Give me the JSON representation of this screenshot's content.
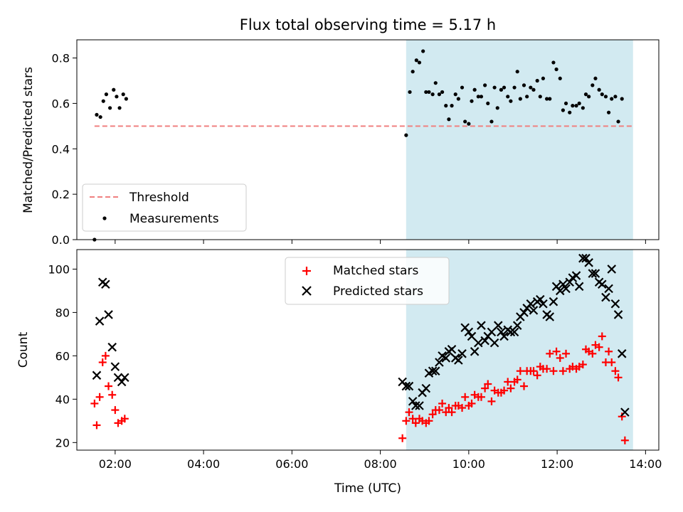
{
  "chart_data": [
    {
      "type": "scatter",
      "title": "Flux total observing time = 5.17 h",
      "ylabel": "Matched/Predicted stars",
      "xlabel": "",
      "xlim": [
        "01:08",
        "14:18"
      ],
      "ylim": [
        0,
        0.88
      ],
      "x_ticks": [
        "02:00",
        "04:00",
        "06:00",
        "08:00",
        "10:00",
        "12:00",
        "14:00"
      ],
      "x_tick_labels_shown": false,
      "y_ticks": [
        0.0,
        0.2,
        0.4,
        0.6,
        0.8
      ],
      "y_tick_labels": [
        "0.0",
        "0.2",
        "0.4",
        "0.6",
        "0.8"
      ],
      "shaded_span": {
        "start": "08:35",
        "end": "13:43",
        "color": "#add8e6"
      },
      "legend_position": "lower-left",
      "series": [
        {
          "name": "Threshold",
          "style": "dashed-line",
          "color": "#f08080",
          "points": [
            [
              "01:32",
              0.5
            ],
            [
              "13:43",
              0.5
            ]
          ]
        },
        {
          "name": "Measurements",
          "style": "dot",
          "color": "#000000",
          "points": [
            [
              "01:32",
              0.0
            ],
            [
              "01:35",
              0.55
            ],
            [
              "01:40",
              0.54
            ],
            [
              "01:44",
              0.61
            ],
            [
              "01:48",
              0.64
            ],
            [
              "01:53",
              0.58
            ],
            [
              "01:58",
              0.66
            ],
            [
              "02:02",
              0.63
            ],
            [
              "02:06",
              0.58
            ],
            [
              "02:11",
              0.64
            ],
            [
              "02:15",
              0.62
            ],
            [
              "08:35",
              0.46
            ],
            [
              "08:40",
              0.65
            ],
            [
              "08:44",
              0.74
            ],
            [
              "08:49",
              0.79
            ],
            [
              "08:53",
              0.78
            ],
            [
              "08:58",
              0.83
            ],
            [
              "09:02",
              0.65
            ],
            [
              "09:06",
              0.65
            ],
            [
              "09:11",
              0.64
            ],
            [
              "09:15",
              0.69
            ],
            [
              "09:20",
              0.64
            ],
            [
              "09:24",
              0.65
            ],
            [
              "09:29",
              0.59
            ],
            [
              "09:33",
              0.53
            ],
            [
              "09:37",
              0.59
            ],
            [
              "09:42",
              0.64
            ],
            [
              "09:46",
              0.62
            ],
            [
              "09:51",
              0.67
            ],
            [
              "09:55",
              0.52
            ],
            [
              "10:00",
              0.51
            ],
            [
              "10:04",
              0.61
            ],
            [
              "10:08",
              0.66
            ],
            [
              "10:13",
              0.63
            ],
            [
              "10:17",
              0.63
            ],
            [
              "10:22",
              0.68
            ],
            [
              "10:26",
              0.6
            ],
            [
              "10:31",
              0.52
            ],
            [
              "10:35",
              0.67
            ],
            [
              "10:39",
              0.58
            ],
            [
              "10:44",
              0.66
            ],
            [
              "10:48",
              0.67
            ],
            [
              "10:53",
              0.63
            ],
            [
              "10:57",
              0.61
            ],
            [
              "11:02",
              0.67
            ],
            [
              "11:06",
              0.74
            ],
            [
              "11:10",
              0.62
            ],
            [
              "11:15",
              0.68
            ],
            [
              "11:19",
              0.63
            ],
            [
              "11:24",
              0.67
            ],
            [
              "11:28",
              0.66
            ],
            [
              "11:33",
              0.7
            ],
            [
              "11:37",
              0.63
            ],
            [
              "11:41",
              0.71
            ],
            [
              "11:46",
              0.62
            ],
            [
              "11:50",
              0.62
            ],
            [
              "11:55",
              0.78
            ],
            [
              "11:59",
              0.75
            ],
            [
              "12:04",
              0.71
            ],
            [
              "12:08",
              0.57
            ],
            [
              "12:12",
              0.6
            ],
            [
              "12:17",
              0.56
            ],
            [
              "12:21",
              0.59
            ],
            [
              "12:26",
              0.59
            ],
            [
              "12:30",
              0.6
            ],
            [
              "12:35",
              0.58
            ],
            [
              "12:39",
              0.64
            ],
            [
              "12:43",
              0.63
            ],
            [
              "12:48",
              0.68
            ],
            [
              "12:52",
              0.71
            ],
            [
              "12:57",
              0.66
            ],
            [
              "13:01",
              0.64
            ],
            [
              "13:06",
              0.63
            ],
            [
              "13:10",
              0.56
            ],
            [
              "13:14",
              0.62
            ],
            [
              "13:19",
              0.63
            ],
            [
              "13:23",
              0.52
            ],
            [
              "13:28",
              0.62
            ]
          ]
        }
      ]
    },
    {
      "type": "scatter",
      "title": "",
      "xlabel": "Time (UTC)",
      "ylabel": "Count",
      "xlim": [
        "01:08",
        "14:18"
      ],
      "ylim": [
        16.5,
        109
      ],
      "x_ticks": [
        "02:00",
        "04:00",
        "06:00",
        "08:00",
        "10:00",
        "12:00",
        "14:00"
      ],
      "x_tick_labels": [
        "02:00",
        "04:00",
        "06:00",
        "08:00",
        "10:00",
        "12:00",
        "14:00"
      ],
      "y_ticks": [
        20,
        40,
        60,
        80,
        100
      ],
      "y_tick_labels": [
        "20",
        "40",
        "60",
        "80",
        "100"
      ],
      "shaded_span": {
        "start": "08:35",
        "end": "13:43",
        "color": "#add8e6"
      },
      "legend_position": "upper-center",
      "series": [
        {
          "name": "Matched stars",
          "marker": "plus",
          "color": "#ff0000",
          "points": [
            [
              "01:32",
              38
            ],
            [
              "01:35",
              28
            ],
            [
              "01:39",
              41
            ],
            [
              "01:43",
              57
            ],
            [
              "01:47",
              60
            ],
            [
              "01:51",
              46
            ],
            [
              "01:56",
              42
            ],
            [
              "02:00",
              35
            ],
            [
              "02:04",
              29
            ],
            [
              "02:09",
              30
            ],
            [
              "02:13",
              31
            ],
            [
              "08:30",
              22
            ],
            [
              "08:35",
              30
            ],
            [
              "08:39",
              34
            ],
            [
              "08:44",
              31
            ],
            [
              "08:48",
              29
            ],
            [
              "08:53",
              31
            ],
            [
              "08:57",
              30
            ],
            [
              "09:02",
              29
            ],
            [
              "09:06",
              30
            ],
            [
              "09:11",
              33
            ],
            [
              "09:15",
              35
            ],
            [
              "09:20",
              35
            ],
            [
              "09:24",
              38
            ],
            [
              "09:29",
              34
            ],
            [
              "09:33",
              36
            ],
            [
              "09:37",
              34
            ],
            [
              "09:42",
              37
            ],
            [
              "09:46",
              37
            ],
            [
              "09:51",
              36
            ],
            [
              "09:55",
              41
            ],
            [
              "10:00",
              37
            ],
            [
              "10:04",
              38
            ],
            [
              "10:08",
              42
            ],
            [
              "10:13",
              41
            ],
            [
              "10:17",
              41
            ],
            [
              "10:22",
              45
            ],
            [
              "10:26",
              47
            ],
            [
              "10:31",
              39
            ],
            [
              "10:35",
              44
            ],
            [
              "10:40",
              43
            ],
            [
              "10:44",
              43
            ],
            [
              "10:48",
              44
            ],
            [
              "10:53",
              48
            ],
            [
              "10:57",
              45
            ],
            [
              "11:02",
              48
            ],
            [
              "11:06",
              49
            ],
            [
              "11:10",
              53
            ],
            [
              "11:15",
              46
            ],
            [
              "11:19",
              53
            ],
            [
              "11:24",
              53
            ],
            [
              "11:28",
              53
            ],
            [
              "11:33",
              51
            ],
            [
              "11:37",
              55
            ],
            [
              "11:41",
              54
            ],
            [
              "11:46",
              54
            ],
            [
              "11:50",
              61
            ],
            [
              "11:55",
              53
            ],
            [
              "11:59",
              62
            ],
            [
              "12:04",
              59
            ],
            [
              "12:08",
              53
            ],
            [
              "12:12",
              61
            ],
            [
              "12:17",
              54
            ],
            [
              "12:21",
              55
            ],
            [
              "12:26",
              54
            ],
            [
              "12:30",
              55
            ],
            [
              "12:35",
              56
            ],
            [
              "12:39",
              63
            ],
            [
              "12:43",
              62
            ],
            [
              "12:48",
              61
            ],
            [
              "12:52",
              65
            ],
            [
              "12:57",
              64
            ],
            [
              "13:01",
              69
            ],
            [
              "13:06",
              57
            ],
            [
              "13:10",
              62
            ],
            [
              "13:14",
              57
            ],
            [
              "13:19",
              53
            ],
            [
              "13:23",
              50
            ],
            [
              "13:28",
              32
            ],
            [
              "13:32",
              21
            ]
          ]
        },
        {
          "name": "Predicted stars",
          "marker": "x",
          "color": "#000000",
          "points": [
            [
              "01:35",
              51
            ],
            [
              "01:39",
              76
            ],
            [
              "01:43",
              94
            ],
            [
              "01:47",
              93
            ],
            [
              "01:51",
              79
            ],
            [
              "01:56",
              64
            ],
            [
              "02:00",
              55
            ],
            [
              "02:04",
              50
            ],
            [
              "02:09",
              48
            ],
            [
              "02:13",
              50
            ],
            [
              "08:30",
              48
            ],
            [
              "08:35",
              46
            ],
            [
              "08:39",
              46
            ],
            [
              "08:44",
              39
            ],
            [
              "08:48",
              37
            ],
            [
              "08:53",
              37
            ],
            [
              "08:57",
              43
            ],
            [
              "09:02",
              45
            ],
            [
              "09:06",
              52
            ],
            [
              "09:11",
              53
            ],
            [
              "09:15",
              53
            ],
            [
              "09:20",
              57
            ],
            [
              "09:24",
              60
            ],
            [
              "09:29",
              59
            ],
            [
              "09:33",
              62
            ],
            [
              "09:37",
              63
            ],
            [
              "09:42",
              59
            ],
            [
              "09:46",
              58
            ],
            [
              "09:51",
              61
            ],
            [
              "09:55",
              73
            ],
            [
              "10:00",
              71
            ],
            [
              "10:04",
              69
            ],
            [
              "10:08",
              62
            ],
            [
              "10:13",
              66
            ],
            [
              "10:17",
              74
            ],
            [
              "10:22",
              67
            ],
            [
              "10:26",
              69
            ],
            [
              "10:31",
              71
            ],
            [
              "10:35",
              66
            ],
            [
              "10:40",
              74
            ],
            [
              "10:44",
              71
            ],
            [
              "10:48",
              69
            ],
            [
              "10:53",
              72
            ],
            [
              "10:57",
              71
            ],
            [
              "11:02",
              71
            ],
            [
              "11:06",
              74
            ],
            [
              "11:10",
              78
            ],
            [
              "11:15",
              80
            ],
            [
              "11:19",
              82
            ],
            [
              "11:24",
              84
            ],
            [
              "11:28",
              81
            ],
            [
              "11:33",
              85
            ],
            [
              "11:37",
              86
            ],
            [
              "11:41",
              84
            ],
            [
              "11:46",
              79
            ],
            [
              "11:50",
              78
            ],
            [
              "11:55",
              85
            ],
            [
              "11:59",
              92
            ],
            [
              "12:04",
              90
            ],
            [
              "12:08",
              93
            ],
            [
              "12:12",
              91
            ],
            [
              "12:17",
              94
            ],
            [
              "12:21",
              96
            ],
            [
              "12:26",
              97
            ],
            [
              "12:30",
              92
            ],
            [
              "12:35",
              105
            ],
            [
              "12:39",
              105
            ],
            [
              "12:43",
              103
            ],
            [
              "12:48",
              98
            ],
            [
              "12:52",
              98
            ],
            [
              "12:57",
              94
            ],
            [
              "13:01",
              93
            ],
            [
              "13:06",
              87
            ],
            [
              "13:10",
              91
            ],
            [
              "13:14",
              100
            ],
            [
              "13:19",
              84
            ],
            [
              "13:23",
              79
            ],
            [
              "13:28",
              61
            ],
            [
              "13:32",
              34
            ]
          ]
        }
      ]
    }
  ]
}
